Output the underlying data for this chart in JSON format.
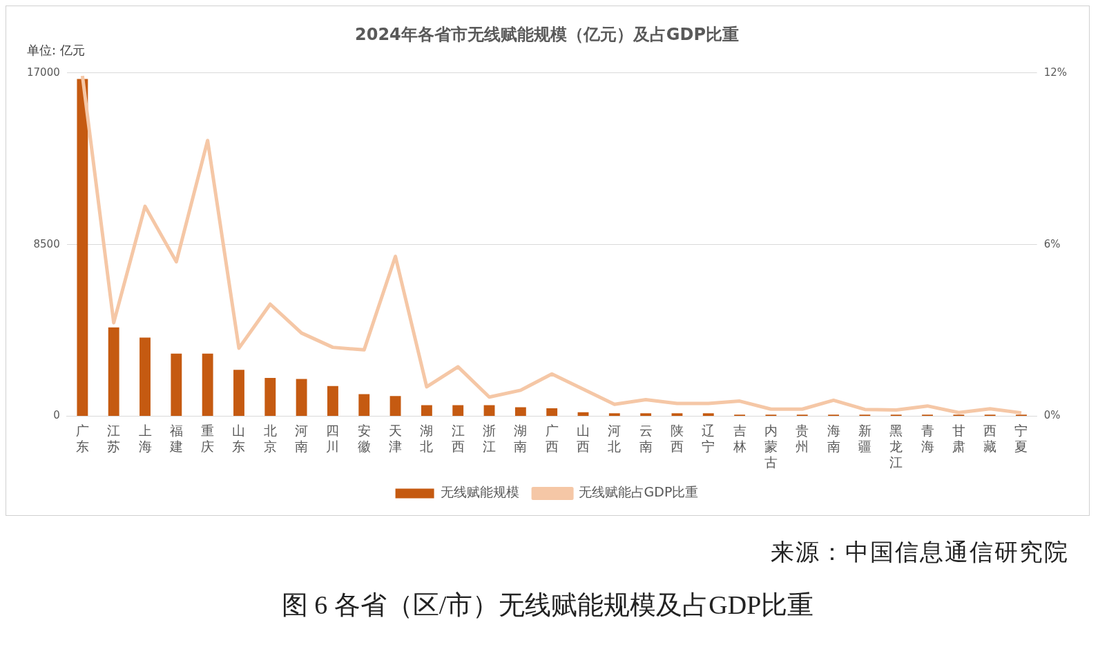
{
  "chart_data": {
    "type": "bar",
    "title": "2024年各省市无线赋能规模（亿元）及占GDP比重",
    "ylabel": "单位: 亿元",
    "categories": [
      "广东",
      "江苏",
      "上海",
      "福建",
      "重庆",
      "山东",
      "北京",
      "河南",
      "四川",
      "安徽",
      "天津",
      "湖北",
      "江西",
      "浙江",
      "湖南",
      "广西",
      "山西",
      "河北",
      "云南",
      "陕西",
      "辽宁",
      "吉林",
      "内蒙古",
      "贵州",
      "海南",
      "新疆",
      "黑龙江",
      "青海",
      "甘肃",
      "西藏",
      "宁夏"
    ],
    "series": [
      {
        "name": "无线赋能规模",
        "color": "#c55a11",
        "values": [
          16700,
          4400,
          3900,
          3100,
          3100,
          2300,
          1900,
          1850,
          1500,
          1100,
          1000,
          550,
          550,
          550,
          450,
          400,
          200,
          150,
          150,
          150,
          150,
          80,
          80,
          80,
          80,
          80,
          80,
          80,
          80,
          80,
          80
        ]
      },
      {
        "name": "无线赋能占GDP比重",
        "type": "line",
        "axis": "y2",
        "color": "#f5c7a6",
        "values": [
          11.9,
          3.27,
          7.34,
          5.4,
          9.64,
          2.38,
          3.92,
          2.91,
          2.41,
          2.32,
          5.59,
          1.03,
          1.73,
          0.67,
          0.91,
          1.48,
          0.95,
          0.42,
          0.58,
          0.45,
          0.45,
          0.53,
          0.25,
          0.25,
          0.56,
          0.24,
          0.22,
          0.36,
          0.13,
          0.26,
          0.12
        ]
      }
    ],
    "ylim": [
      0,
      17000
    ],
    "yticks": [
      0,
      8500,
      17000
    ],
    "y2lim": [
      0,
      12
    ],
    "y2ticks": [
      {
        "value": 0,
        "label": "0%"
      },
      {
        "value": 6,
        "label": "6%"
      },
      {
        "value": 12,
        "label": "12%"
      }
    ],
    "grid": "y",
    "legend": "bottom",
    "marker": "none",
    "annotations": [
      "来源：中国信息通信研究院",
      "图 6 各省（区/市）无线赋能规模及占GDP比重"
    ]
  }
}
